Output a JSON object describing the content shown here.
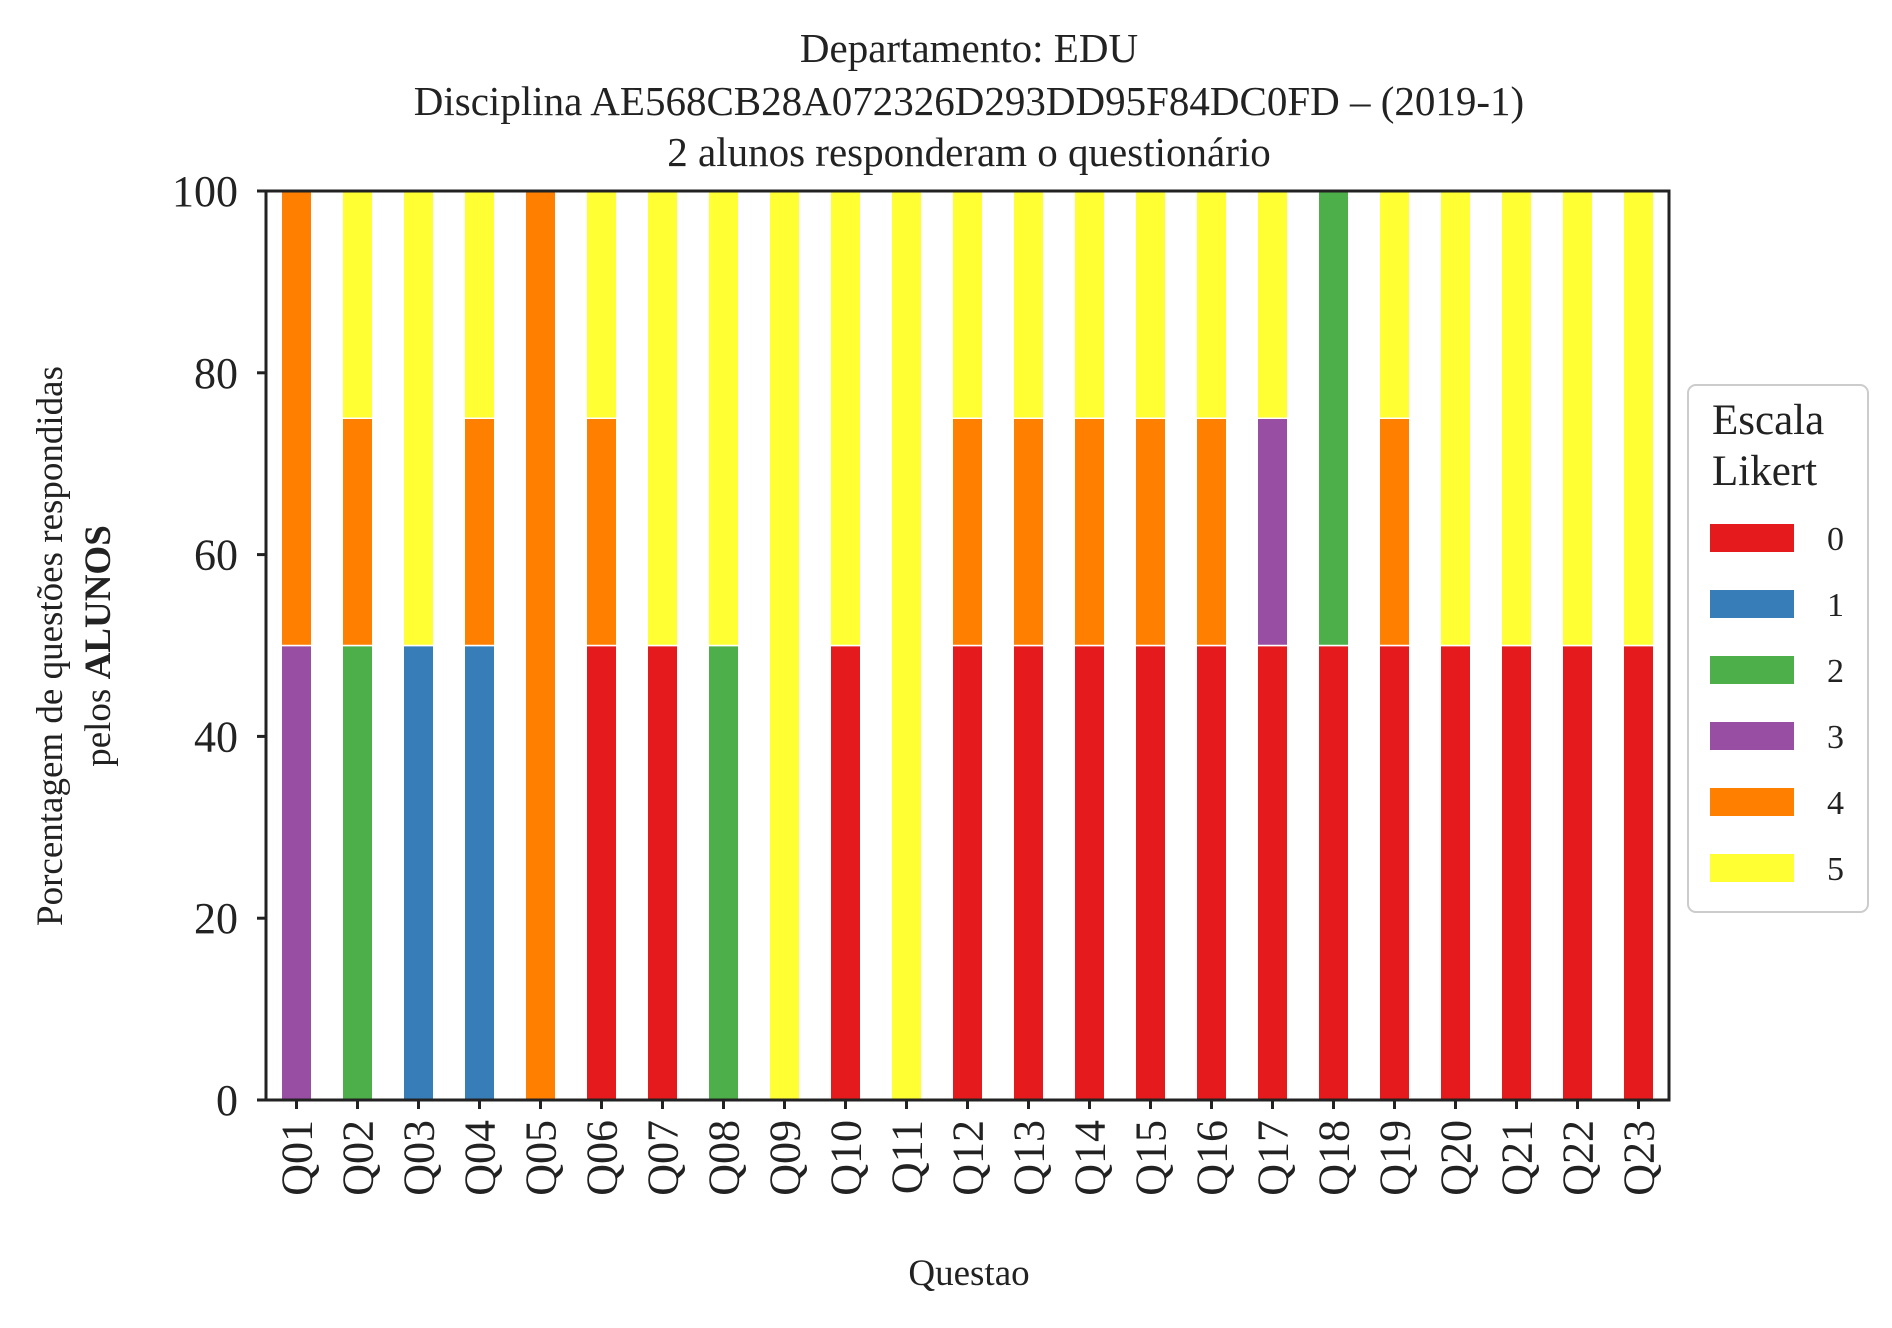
{
  "chart_data": {
    "type": "bar",
    "stacked": true,
    "title_lines": [
      "Departamento: EDU",
      "Disciplina AE568CB28A072326D293DD95F84DC0FD – (2019-1)",
      "2 alunos responderam o questionário"
    ],
    "xlabel": "Questao",
    "ylabel_line1": "Porcentagem de questões respondidas",
    "ylabel_line2_prefix": "pelos ",
    "ylabel_line2_bold": "ALUNOS",
    "ylim": [
      0,
      100
    ],
    "yticks": [
      0,
      20,
      40,
      60,
      80,
      100
    ],
    "categories": [
      "Q01",
      "Q02",
      "Q03",
      "Q04",
      "Q05",
      "Q06",
      "Q07",
      "Q08",
      "Q09",
      "Q10",
      "Q11",
      "Q12",
      "Q13",
      "Q14",
      "Q15",
      "Q16",
      "Q17",
      "Q18",
      "Q19",
      "Q20",
      "Q21",
      "Q22",
      "Q23"
    ],
    "legend": {
      "title_lines": [
        "Escala",
        "Likert"
      ],
      "position": "right, outside plot"
    },
    "grid": false,
    "series": [
      {
        "name": "0",
        "color": "#e41a1c",
        "values": [
          0,
          0,
          0,
          0,
          0,
          50,
          50,
          0,
          0,
          50,
          0,
          50,
          50,
          50,
          50,
          50,
          50,
          50,
          50,
          50,
          50,
          50,
          50
        ]
      },
      {
        "name": "1",
        "color": "#377eb8",
        "values": [
          0,
          0,
          50,
          50,
          0,
          0,
          0,
          0,
          0,
          0,
          0,
          0,
          0,
          0,
          0,
          0,
          0,
          0,
          0,
          0,
          0,
          0,
          0
        ]
      },
      {
        "name": "2",
        "color": "#4daf4a",
        "values": [
          0,
          50,
          0,
          0,
          0,
          0,
          0,
          50,
          0,
          0,
          0,
          0,
          0,
          0,
          0,
          0,
          0,
          50,
          0,
          0,
          0,
          0,
          0
        ]
      },
      {
        "name": "3",
        "color": "#984ea3",
        "values": [
          50,
          0,
          0,
          0,
          0,
          0,
          0,
          0,
          0,
          0,
          0,
          0,
          0,
          0,
          0,
          0,
          25,
          0,
          0,
          0,
          0,
          0,
          0
        ]
      },
      {
        "name": "4",
        "color": "#ff7f00",
        "values": [
          50,
          25,
          0,
          25,
          100,
          25,
          0,
          0,
          0,
          0,
          0,
          25,
          25,
          25,
          25,
          25,
          0,
          0,
          25,
          0,
          0,
          0,
          0
        ]
      },
      {
        "name": "5",
        "color": "#ffff33",
        "values": [
          0,
          25,
          50,
          25,
          0,
          25,
          50,
          50,
          100,
          50,
          100,
          25,
          25,
          25,
          25,
          25,
          25,
          0,
          25,
          50,
          50,
          50,
          50
        ]
      }
    ]
  }
}
